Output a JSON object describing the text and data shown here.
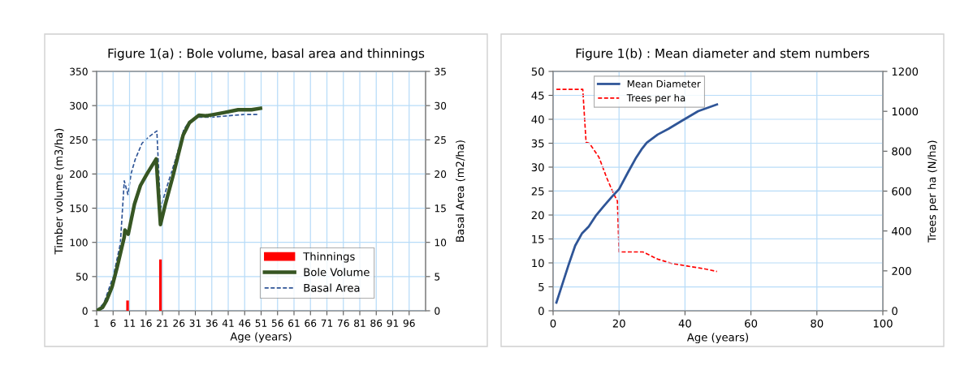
{
  "chart_data": [
    {
      "type": "line",
      "title": "Figure 1(a) : Bole volume, basal area and thinnings",
      "xlabel": "Age (years)",
      "ylabel": "Timber volume (m3/ha)",
      "y2label": "Basal Area (m2/ha)",
      "xlim": [
        1,
        101
      ],
      "xticks": [
        1,
        6,
        11,
        16,
        21,
        26,
        31,
        36,
        41,
        46,
        51,
        56,
        61,
        66,
        71,
        76,
        81,
        86,
        91,
        96
      ],
      "ylim": [
        0,
        350
      ],
      "yticks": [
        0,
        50,
        100,
        150,
        200,
        250,
        300,
        350
      ],
      "y2lim": [
        0,
        35
      ],
      "y2ticks": [
        0,
        5,
        10,
        15,
        20,
        25,
        30,
        35
      ],
      "grid": true,
      "legend": "bottom right",
      "series": [
        {
          "name": "Thinnings",
          "type": "bar",
          "color": "#ff0000",
          "x": [
            10,
            20
          ],
          "values": [
            15,
            75
          ]
        },
        {
          "name": "Bole Volume",
          "color": "#375623",
          "line_style": "solid",
          "x": [
            1,
            2.8,
            4,
            5.7,
            7.3,
            9.4,
            9.6,
            10.6,
            12.5,
            14.3,
            16.4,
            19.1,
            20.4,
            21.8,
            24.2,
            27.3,
            29.2,
            32.1,
            34.1,
            36.6,
            39.9,
            44,
            48.1,
            50.8
          ],
          "values": [
            0,
            5,
            15,
            35,
            65,
            108,
            118,
            112,
            156,
            183,
            201,
            222,
            126,
            154,
            197,
            257,
            275,
            286,
            285,
            287,
            290,
            294,
            294,
            296
          ]
        },
        {
          "name": "Basal Area",
          "axis": "y2",
          "color": "#2f5597",
          "line_style": "dashed",
          "x": [
            1,
            3.2,
            6.1,
            8.2,
            9.4,
            10.5,
            11.5,
            12.7,
            14.8,
            16.8,
            19.3,
            20.4,
            22.6,
            25.1,
            27.5,
            29.2,
            31.6,
            35.8,
            40.7,
            45.7,
            50.2
          ],
          "values": [
            0,
            1.1,
            5.1,
            9.8,
            19.0,
            17.0,
            20.1,
            22.1,
            24.5,
            25.4,
            26.3,
            15.0,
            18.5,
            22.3,
            26.5,
            27.7,
            28.3,
            28.3,
            28.5,
            28.7,
            28.7
          ]
        }
      ]
    },
    {
      "type": "line",
      "title": "Figure 1(b) : Mean diameter and stem numbers",
      "xlabel": "Age (years)",
      "y2label": "Trees per ha (N/ha)",
      "xlim": [
        0,
        100
      ],
      "xticks": [
        0,
        20,
        40,
        60,
        80,
        100
      ],
      "ylim": [
        0,
        50
      ],
      "yticks": [
        0,
        5,
        10,
        15,
        20,
        25,
        30,
        35,
        40,
        45,
        50
      ],
      "y2lim": [
        0,
        1200
      ],
      "y2ticks": [
        0,
        200,
        400,
        600,
        800,
        1000,
        1200
      ],
      "grid": true,
      "legend": "top left",
      "series": [
        {
          "name": "Mean Diameter",
          "color": "#2f5597",
          "line_style": "solid",
          "x": [
            1,
            2.6,
            4.7,
            6.7,
            8.8,
            10.8,
            12.9,
            15.3,
            17.8,
            20,
            22.7,
            25.2,
            26.8,
            28.4,
            31.7,
            35,
            39.1,
            44,
            49.7
          ],
          "values": [
            1.7,
            5.1,
            9.6,
            13.6,
            16.2,
            17.6,
            19.8,
            21.8,
            23.8,
            25.4,
            28.9,
            32.0,
            33.7,
            35.1,
            36.8,
            38.0,
            39.7,
            41.7,
            43.1
          ]
        },
        {
          "name": "Trees per ha",
          "axis": "y2",
          "color": "#ff0000",
          "line_style": "dashed",
          "x": [
            1,
            9,
            10,
            11,
            13.9,
            16.3,
            18.4,
            19.5,
            20,
            27.2,
            28.4,
            31.7,
            35.8,
            40.7,
            45.7,
            49.7
          ],
          "values": [
            1110,
            1110,
            845,
            840,
            770,
            665,
            585,
            550,
            295,
            295,
            286,
            259,
            238,
            224,
            211,
            197
          ]
        }
      ]
    }
  ]
}
